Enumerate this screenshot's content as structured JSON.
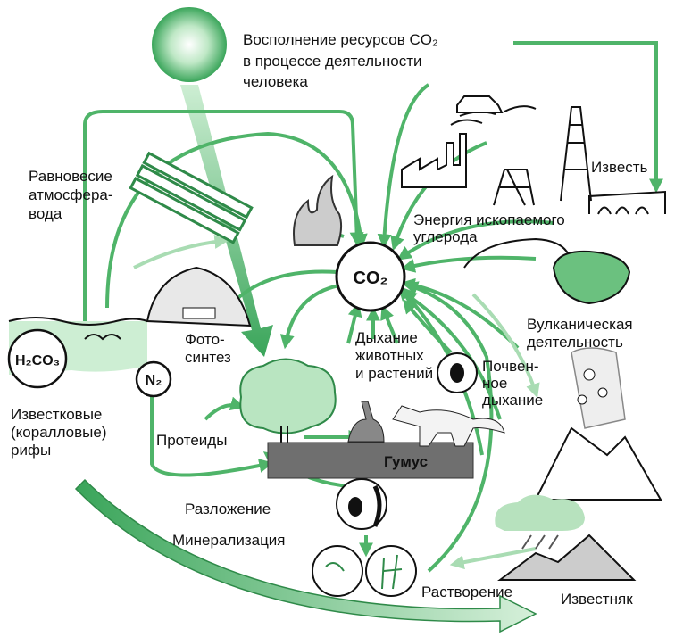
{
  "labels": {
    "replenish": [
      "Восполнение ресурсов CO₂",
      "в процессе деятельности",
      "человека"
    ],
    "equilibrium": [
      "Равновесие",
      "атмосфера-",
      "вода"
    ],
    "co2": "CO₂",
    "fossil_energy": [
      "Энергия ископаемого",
      "углерода"
    ],
    "lime": "Известь",
    "volcanic": [
      "Вулканическая",
      "деятельность"
    ],
    "photosynthesis": [
      "Фото-",
      "синтез"
    ],
    "carbonic_acid": "H₂CO₃",
    "nitrogen": "N₂",
    "respiration": [
      "Дыхание",
      "животных",
      "и растений"
    ],
    "soil_respiration": [
      "Почвен-",
      "ное",
      "дыхание"
    ],
    "reefs": [
      "Известковые",
      "(коралловые)",
      "рифы"
    ],
    "proteins": "Протеиды",
    "humus": "Гумус",
    "decomposition": "Разложение",
    "mineralization": "Минерализация",
    "dissolution": "Растворение",
    "limestone": "Известняк"
  }
}
